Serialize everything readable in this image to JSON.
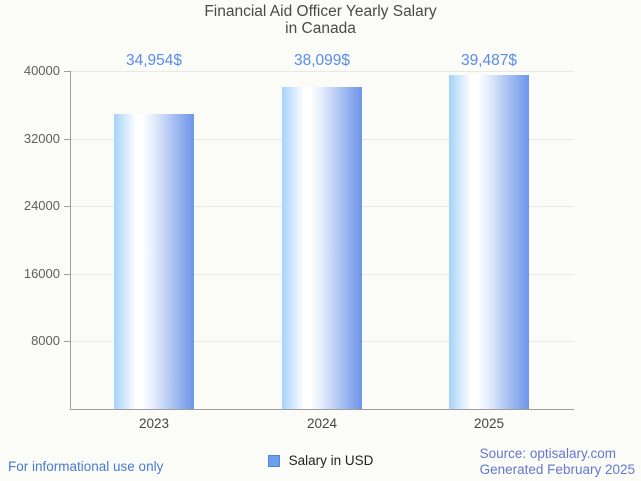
{
  "chart_data": {
    "type": "bar",
    "title": "Financial Aid Officer Yearly Salary\nin Canada",
    "categories": [
      "2023",
      "2024",
      "2025"
    ],
    "series": [
      {
        "name": "Salary in USD",
        "values": [
          34954,
          38099,
          39487
        ]
      }
    ],
    "value_labels": [
      "34,954$",
      "38,099$",
      "39,487$"
    ],
    "xlabel": "",
    "ylabel": "",
    "ylim": [
      0,
      40000
    ],
    "yticks": [
      8000,
      16000,
      24000,
      32000,
      40000
    ],
    "grid": true,
    "legend_position": "bottom-center"
  },
  "legend": {
    "label": "Salary in USD",
    "swatch_color": "#6d9eeb"
  },
  "footer": {
    "disclaimer": "For informational use only",
    "source": "Source: optisalary.com\nGenerated February 2025"
  },
  "colors": {
    "background": "#fbfbf7",
    "title_text": "#4a4a4a",
    "value_label_text": "#5a8ce8",
    "bar_edge_light": "#a6d2fb",
    "bar_edge_dark": "#6d95e9",
    "axis": "#9e9e9e",
    "gridline": "#e8e8e4",
    "disclaimer_text": "#4a7bd5",
    "source_text": "#6379cf"
  }
}
